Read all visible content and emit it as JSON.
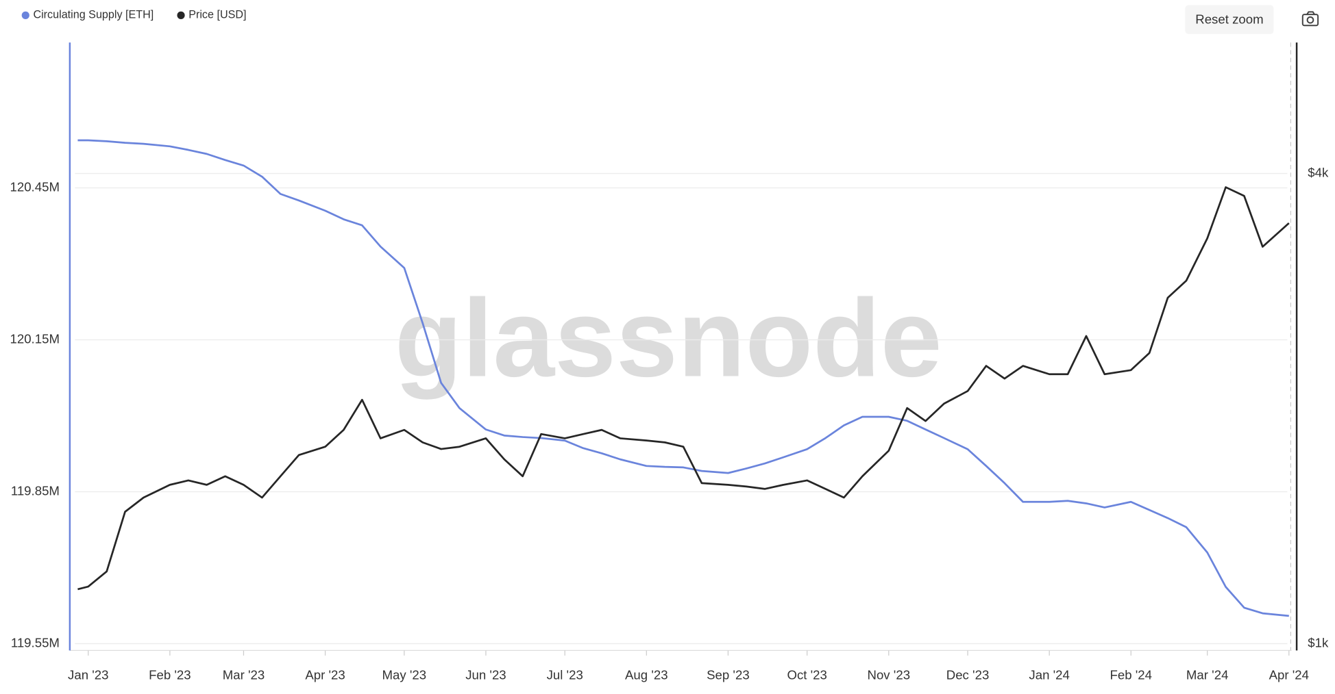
{
  "controls": {
    "reset_zoom": "Reset zoom"
  },
  "chart_data": {
    "type": "line",
    "watermark": "glassnode",
    "x": [
      "2022-12-28",
      "2023-01-01",
      "2023-01-08",
      "2023-01-15",
      "2023-01-22",
      "2023-02-01",
      "2023-02-08",
      "2023-02-15",
      "2023-02-22",
      "2023-03-01",
      "2023-03-08",
      "2023-03-15",
      "2023-03-22",
      "2023-04-01",
      "2023-04-08",
      "2023-04-15",
      "2023-04-22",
      "2023-05-01",
      "2023-05-08",
      "2023-05-15",
      "2023-05-22",
      "2023-06-01",
      "2023-06-08",
      "2023-06-15",
      "2023-06-22",
      "2023-07-01",
      "2023-07-08",
      "2023-07-15",
      "2023-07-22",
      "2023-08-01",
      "2023-08-08",
      "2023-08-15",
      "2023-08-22",
      "2023-09-01",
      "2023-09-08",
      "2023-09-15",
      "2023-09-22",
      "2023-10-01",
      "2023-10-08",
      "2023-10-15",
      "2023-10-22",
      "2023-11-01",
      "2023-11-08",
      "2023-11-15",
      "2023-11-22",
      "2023-12-01",
      "2023-12-08",
      "2023-12-15",
      "2023-12-22",
      "2024-01-01",
      "2024-01-08",
      "2024-01-15",
      "2024-01-22",
      "2024-02-01",
      "2024-02-08",
      "2024-02-15",
      "2024-02-22",
      "2024-03-01",
      "2024-03-08",
      "2024-03-15",
      "2024-03-22",
      "2024-04-01"
    ],
    "series": [
      {
        "name": "Circulating Supply [ETH]",
        "color": "#6a84dc",
        "axis": "y",
        "values": [
          120544000,
          120544000,
          120542000,
          120539000,
          120537000,
          120532000,
          120525000,
          120517000,
          120505000,
          120494000,
          120472000,
          120438000,
          120425000,
          120405000,
          120388000,
          120376000,
          120334000,
          120292000,
          120183000,
          120065000,
          120015000,
          119973000,
          119961000,
          119958000,
          119956000,
          119951000,
          119936000,
          119926000,
          119914000,
          119901000,
          119899000,
          119898000,
          119891000,
          119887000,
          119896000,
          119906000,
          119918000,
          119934000,
          119956000,
          119981000,
          119998000,
          119998000,
          119990000,
          119973000,
          119956000,
          119934000,
          119901000,
          119867000,
          119830000,
          119830000,
          119832000,
          119827000,
          119819000,
          119830000,
          119814000,
          119798000,
          119780000,
          119730000,
          119662000,
          119621000,
          119610000,
          119605000
        ]
      },
      {
        "name": "Price [USD]",
        "color": "#262626",
        "axis": "y2",
        "values": [
          1174,
          1183,
          1237,
          1475,
          1538,
          1597,
          1618,
          1597,
          1638,
          1597,
          1538,
          1638,
          1744,
          1787,
          1878,
          2052,
          1832,
          1878,
          1810,
          1775,
          1787,
          1832,
          1722,
          1638,
          1855,
          1832,
          1855,
          1878,
          1832,
          1820,
          1810,
          1787,
          1605,
          1597,
          1589,
          1578,
          1597,
          1618,
          1578,
          1538,
          1638,
          1766,
          2003,
          1928,
          2029,
          2106,
          2268,
          2185,
          2268,
          2213,
          2213,
          2477,
          2213,
          2240,
          2356,
          2773,
          2916,
          3304,
          3841,
          3744,
          3223,
          3455
        ]
      }
    ],
    "xlim": [
      "2022-12-25",
      "2024-04-02"
    ],
    "xticks": [
      {
        "value": "2023-01-01",
        "label": "Jan '23"
      },
      {
        "value": "2023-02-01",
        "label": "Feb '23"
      },
      {
        "value": "2023-03-01",
        "label": "Mar '23"
      },
      {
        "value": "2023-04-01",
        "label": "Apr '23"
      },
      {
        "value": "2023-05-01",
        "label": "May '23"
      },
      {
        "value": "2023-06-01",
        "label": "Jun '23"
      },
      {
        "value": "2023-07-01",
        "label": "Jul '23"
      },
      {
        "value": "2023-08-01",
        "label": "Aug '23"
      },
      {
        "value": "2023-09-01",
        "label": "Sep '23"
      },
      {
        "value": "2023-10-01",
        "label": "Oct '23"
      },
      {
        "value": "2023-11-01",
        "label": "Nov '23"
      },
      {
        "value": "2023-12-01",
        "label": "Dec '23"
      },
      {
        "value": "2024-01-01",
        "label": "Jan '24"
      },
      {
        "value": "2024-02-01",
        "label": "Feb '24"
      },
      {
        "value": "2024-03-01",
        "label": "Mar '24"
      },
      {
        "value": "2024-04-01",
        "label": "Apr '24"
      }
    ],
    "ylim": [
      119536600,
      120737000
    ],
    "yticks": [
      {
        "value": 119550000,
        "label": "119.55M"
      },
      {
        "value": 119850000,
        "label": "119.85M"
      },
      {
        "value": 120150000,
        "label": "120.15M"
      },
      {
        "value": 120450000,
        "label": "120.45M"
      }
    ],
    "y2lim": [
      980,
      5885
    ],
    "y2scale": "log",
    "y2ticks": [
      {
        "value": 1000,
        "label": "$1k"
      },
      {
        "value": 4000,
        "label": "$4k"
      }
    ],
    "grid": true,
    "legend": "top-left"
  }
}
